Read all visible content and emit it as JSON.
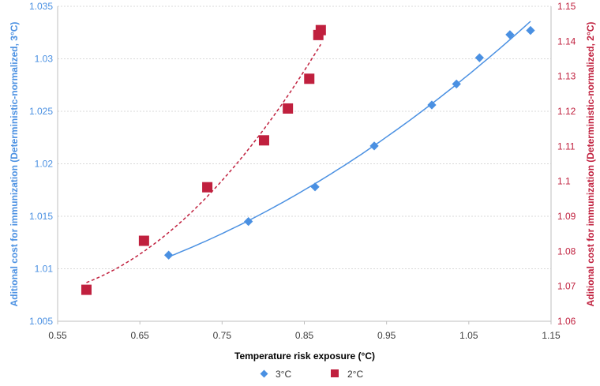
{
  "chart_data": {
    "type": "scatter",
    "xlabel": "Temperature risk exposure (°C)",
    "ylabel_left": "Aditional cost for immunization  (Deterministic-normalized, 3°C)",
    "ylabel_right": "Aditional cost for immunization  (Deterministic-normalized, 2°C)",
    "xlim": [
      0.55,
      1.15
    ],
    "xticks": [
      0.55,
      0.65,
      0.75,
      0.85,
      0.95,
      1.05,
      1.15
    ],
    "xtick_labels": [
      "0.55",
      "0.65",
      "0.75",
      "0.85",
      "0.95",
      "1.05",
      "1.15"
    ],
    "ylim_left": [
      1.005,
      1.035
    ],
    "yticks_left": [
      1.005,
      1.01,
      1.015,
      1.02,
      1.025,
      1.03,
      1.035
    ],
    "ytick_labels_left": [
      "1.005",
      "1.01",
      "1.015",
      "1.02",
      "1.025",
      "1.03",
      "1.035"
    ],
    "ylim_right": [
      1.06,
      1.15
    ],
    "yticks_right": [
      1.06,
      1.07,
      1.08,
      1.09,
      1.1,
      1.11,
      1.12,
      1.13,
      1.14,
      1.15
    ],
    "ytick_labels_right": [
      "1.06",
      "1.07",
      "1.08",
      "1.09",
      "1.1",
      "1.11",
      "1.12",
      "1.13",
      "1.14",
      "1.15"
    ],
    "grid": true,
    "legend_position": "bottom",
    "series": [
      {
        "name": "3°C",
        "axis": "left",
        "marker": "diamond",
        "color": "#4a90e2",
        "trend": "solid",
        "x": [
          0.685,
          0.782,
          0.863,
          0.935,
          1.005,
          1.035,
          1.063,
          1.1,
          1.125
        ],
        "y": [
          1.0113,
          1.0145,
          1.0178,
          1.0217,
          1.0256,
          1.0276,
          1.0301,
          1.0323,
          1.0327
        ]
      },
      {
        "name": "2°C",
        "axis": "right",
        "marker": "square",
        "color": "#c0203e",
        "trend": "dashed",
        "x": [
          0.585,
          0.655,
          0.732,
          0.801,
          0.83,
          0.856,
          0.867,
          0.87
        ],
        "y": [
          1.069,
          1.083,
          1.0983,
          1.1117,
          1.1208,
          1.1293,
          1.1418,
          1.1432
        ]
      }
    ]
  }
}
